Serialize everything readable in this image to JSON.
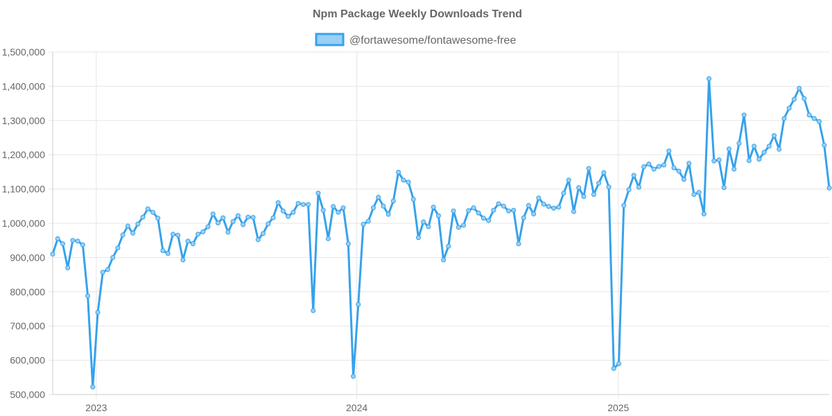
{
  "chart_data": {
    "type": "line",
    "title": "Npm Package Weekly Downloads Trend",
    "xlabel": "",
    "ylabel": "",
    "legend_position": "top-center",
    "grid": true,
    "ylim": [
      500000,
      1500000
    ],
    "y_ticks": [
      500000,
      600000,
      700000,
      800000,
      900000,
      1000000,
      1100000,
      1200000,
      1300000,
      1400000,
      1500000
    ],
    "y_tick_labels": [
      "500,000",
      "600,000",
      "700,000",
      "800,000",
      "900,000",
      "1,000,000",
      "1,100,000",
      "1,200,000",
      "1,300,000",
      "1,400,000",
      "1,500,000"
    ],
    "x_ticks": [
      8.7,
      60.7,
      112.9
    ],
    "x_tick_labels": [
      "2023",
      "2024",
      "2025"
    ],
    "xlim": [
      0,
      155
    ],
    "series": [
      {
        "name": "@fortawesome/fontawesome-free",
        "color": "#36a2eb",
        "fill": "#9ad0f5",
        "values": [
          910000,
          955000,
          940000,
          870000,
          950000,
          948000,
          937000,
          788000,
          522000,
          740000,
          857000,
          865000,
          900000,
          928000,
          966000,
          992000,
          971000,
          998000,
          1018000,
          1042000,
          1032000,
          1015000,
          920000,
          912000,
          968000,
          965000,
          893000,
          948000,
          940000,
          968000,
          975000,
          990000,
          1027000,
          1001000,
          1016000,
          974000,
          1005000,
          1022000,
          996000,
          1018000,
          1017000,
          952000,
          970000,
          998000,
          1016000,
          1060000,
          1036000,
          1020000,
          1032000,
          1058000,
          1055000,
          1055000,
          745000,
          1088000,
          1038000,
          955000,
          1049000,
          1032000,
          1045000,
          940000,
          553000,
          763000,
          997000,
          1006000,
          1045000,
          1076000,
          1050000,
          1026000,
          1065000,
          1149000,
          1126000,
          1120000,
          1070000,
          958000,
          1004000,
          990000,
          1047000,
          1022000,
          893000,
          933000,
          1036000,
          988000,
          994000,
          1037000,
          1045000,
          1030000,
          1015000,
          1008000,
          1038000,
          1057000,
          1050000,
          1036000,
          1038000,
          940000,
          1016000,
          1052000,
          1027000,
          1074000,
          1056000,
          1049000,
          1044000,
          1047000,
          1088000,
          1126000,
          1034000,
          1104000,
          1078000,
          1160000,
          1084000,
          1117000,
          1148000,
          1106000,
          576000,
          590000,
          1052000,
          1098000,
          1140000,
          1105000,
          1165000,
          1173000,
          1158000,
          1166000,
          1170000,
          1211000,
          1162000,
          1152000,
          1128000,
          1175000,
          1084000,
          1090000,
          1027000,
          1422000,
          1182000,
          1185000,
          1104000,
          1217000,
          1158000,
          1233000,
          1316000,
          1183000,
          1225000,
          1187000,
          1207000,
          1225000,
          1256000,
          1216000,
          1306000,
          1336000,
          1362000,
          1394000,
          1364000,
          1316000,
          1306000,
          1297000,
          1228000,
          1103000
        ]
      }
    ]
  }
}
